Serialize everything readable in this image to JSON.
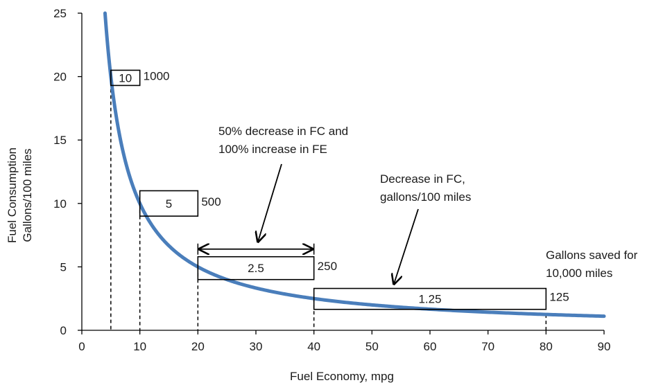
{
  "chart_data": {
    "type": "line",
    "title": "",
    "xlabel": "Fuel Economy, mpg",
    "ylabel_line1": "Fuel Consumption",
    "ylabel_line2": "Gallons/100 miles",
    "xlim": [
      0,
      90
    ],
    "ylim": [
      0,
      25
    ],
    "x_ticks": [
      0,
      10,
      20,
      30,
      40,
      50,
      60,
      70,
      80,
      90
    ],
    "y_ticks": [
      0,
      5,
      10,
      15,
      20,
      25
    ],
    "grid": false,
    "series": [
      {
        "color": "#4a7ebb",
        "x_start": 4,
        "x_end": 90,
        "formula": "y = 100 / x"
      }
    ],
    "dashed_markers": [
      {
        "x": 5,
        "y": 20
      },
      {
        "x": 10,
        "y": 10
      },
      {
        "x": 20,
        "y": 5
      },
      {
        "x": 40,
        "y": 2.5
      },
      {
        "x": 80,
        "y": 1.25
      }
    ],
    "value_boxes": [
      {
        "x_from": 5,
        "x_to": 10,
        "y_top": 20.5,
        "y_bottom": 19.3,
        "box_label": "10",
        "side_label": "1000"
      },
      {
        "x_from": 10,
        "x_to": 20,
        "y_top": 11.0,
        "y_bottom": 9.0,
        "box_label": "5",
        "side_label": "500"
      },
      {
        "x_from": 20,
        "x_to": 40,
        "y_top": 5.8,
        "y_bottom": 4.0,
        "box_label": "2.5",
        "side_label": "250"
      },
      {
        "x_from": 40,
        "x_to": 80,
        "y_top": 3.3,
        "y_bottom": 1.65,
        "box_label": "1.25",
        "side_label": "125"
      }
    ],
    "annotations": {
      "double_arrow": {
        "x_from": 20,
        "x_to": 40,
        "y": 6.4
      },
      "fe_note": {
        "lines": [
          "50% decrease in FC and",
          "100% increase in FE"
        ]
      },
      "fc_note": {
        "lines": [
          "Decrease in FC,",
          "gallons/100 miles"
        ]
      },
      "saved_note": {
        "lines": [
          "Gallons saved for",
          "10,000 miles"
        ]
      }
    }
  }
}
